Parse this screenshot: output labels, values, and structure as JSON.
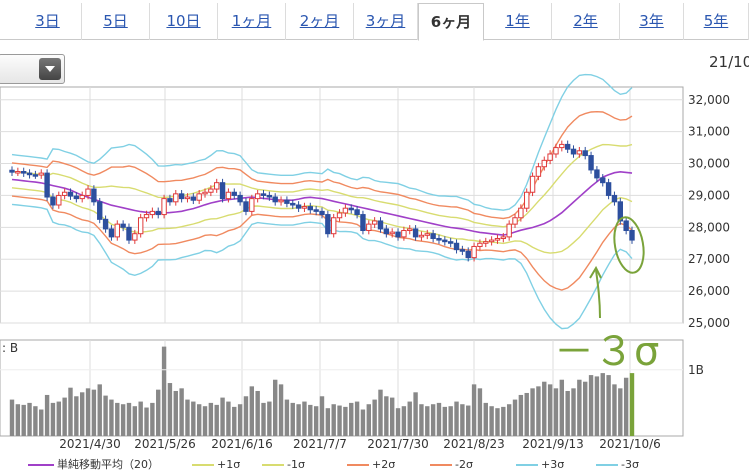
{
  "tabs": [
    {
      "label": "3日"
    },
    {
      "label": "5日"
    },
    {
      "label": "10日"
    },
    {
      "label": "1ヶ月"
    },
    {
      "label": "2ヶ月"
    },
    {
      "label": "3ヶ月"
    },
    {
      "label": "6ヶ月",
      "active": true
    },
    {
      "label": "1年"
    },
    {
      "label": "2年"
    },
    {
      "label": "3年"
    },
    {
      "label": "5年"
    }
  ],
  "date_label": "21/10",
  "annotation": "－３σ",
  "volume_label": ": B",
  "legend": [
    {
      "label": "単純移動平均（20）",
      "color": "#a040c8"
    },
    {
      "label": "+1σ",
      "color": "#d8dc70"
    },
    {
      "label": "-1σ",
      "color": "#d8dc70"
    },
    {
      "label": "+2σ",
      "color": "#f08a60"
    },
    {
      "label": "-2σ",
      "color": "#f08a60"
    },
    {
      "label": "+3σ",
      "color": "#80d0e4"
    },
    {
      "label": "-3σ",
      "color": "#80d0e4"
    }
  ],
  "chart_data": {
    "type": "candlestick-bollinger",
    "y_ticks": [
      "32,000",
      "31,000",
      "30,000",
      "29,000",
      "28,000",
      "27,000",
      "26,000",
      "25,000"
    ],
    "ylim": [
      25000,
      32400
    ],
    "x_ticks": [
      "2021/4/30",
      "2021/5/26",
      "2021/6/16",
      "2021/7/7",
      "2021/7/30",
      "2021/8/23",
      "2021/9/13",
      "2021/10/6"
    ],
    "volume_tick": "1B",
    "close": [
      29730,
      29750,
      29700,
      29650,
      29640,
      29700,
      28950,
      28700,
      29000,
      29100,
      28980,
      28900,
      29000,
      29200,
      28800,
      28250,
      27950,
      27700,
      28100,
      28000,
      27600,
      27800,
      28300,
      28400,
      28500,
      28400,
      28900,
      28800,
      29050,
      28900,
      28950,
      28850,
      29050,
      29100,
      29200,
      29400,
      28900,
      29100,
      29000,
      28800,
      28500,
      28900,
      29050,
      29000,
      28950,
      28800,
      28850,
      28750,
      28700,
      28600,
      28650,
      28550,
      28500,
      28400,
      27800,
      28300,
      28450,
      28600,
      28550,
      28400,
      27900,
      28100,
      28200,
      27950,
      27800,
      27850,
      27700,
      27900,
      27950,
      27700,
      27750,
      27800,
      27650,
      27600,
      27550,
      27500,
      27300,
      27250,
      27050,
      27400,
      27500,
      27550,
      27600,
      27650,
      27700,
      28100,
      28300,
      28600,
      29100,
      29600,
      29900,
      30100,
      30300,
      30500,
      30600,
      30450,
      30300,
      30400,
      30250,
      29800,
      29550,
      29400,
      29000,
      28800,
      28200,
      27900,
      27600
    ],
    "sma20": [
      29500,
      29450,
      29400,
      29300,
      29200,
      29000,
      28850,
      28700,
      28600,
      28500,
      28450,
      28450,
      28500,
      28600,
      28750,
      28850,
      28900,
      28950,
      28900,
      28850,
      28850,
      28950,
      28900,
      28800,
      28700,
      28600,
      28500,
      28400,
      28300,
      28200,
      28100,
      28000,
      27950,
      27850,
      27800,
      27750,
      27900,
      28000,
      28150,
      28450,
      28850,
      29250,
      29600,
      29750,
      29700
    ],
    "volume_B": [
      0.55,
      0.48,
      0.47,
      0.5,
      0.45,
      0.4,
      0.62,
      0.5,
      0.52,
      0.58,
      0.73,
      0.6,
      0.66,
      0.72,
      0.7,
      0.78,
      0.61,
      0.55,
      0.5,
      0.48,
      0.5,
      0.45,
      0.52,
      0.43,
      0.5,
      0.7,
      1.35,
      0.8,
      0.68,
      0.72,
      0.55,
      0.52,
      0.48,
      0.45,
      0.5,
      0.47,
      0.58,
      0.52,
      0.44,
      0.48,
      0.6,
      0.75,
      0.68,
      0.5,
      0.52,
      0.85,
      0.78,
      0.55,
      0.5,
      0.48,
      0.52,
      0.47,
      0.45,
      0.6,
      0.42,
      0.48,
      0.46,
      0.44,
      0.5,
      0.52,
      0.4,
      0.48,
      0.55,
      0.7,
      0.6,
      0.58,
      0.42,
      0.45,
      0.52,
      0.66,
      0.48,
      0.45,
      0.48,
      0.5,
      0.44,
      0.45,
      0.52,
      0.48,
      0.46,
      0.78,
      0.72,
      0.5,
      0.45,
      0.42,
      0.44,
      0.48,
      0.55,
      0.62,
      0.65,
      0.72,
      0.75,
      0.82,
      0.78,
      0.72,
      0.85,
      0.68,
      0.72,
      0.85,
      0.82,
      0.92,
      0.9,
      0.95,
      0.92,
      0.78,
      0.72,
      0.88,
      0.95
    ]
  }
}
